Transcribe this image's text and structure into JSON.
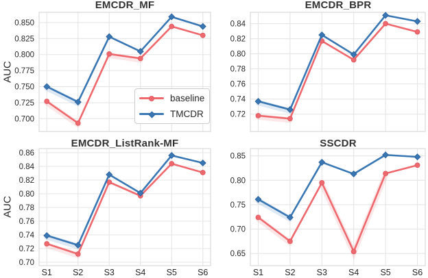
{
  "figure": {
    "background": "#ffffff"
  },
  "colors": {
    "baseline": "#EE686D",
    "baseline_edge": "#E05A62",
    "tmcdr": "#3876B4",
    "tmcdr_edge": "#2E649E",
    "grid": "#E5E5E5",
    "plot_border": "#D9D9D9",
    "tick_text": "#262626",
    "title_text": "#333333"
  },
  "legend": {
    "baseline_label": "baseline",
    "tmcdr_label": "TMCDR",
    "position": "lower right of first subplot"
  },
  "chart_data": [
    {
      "type": "line",
      "title": "EMCDR_MF",
      "ylabel": "AUC",
      "xlabel": "",
      "grid": true,
      "categories": [
        "S1",
        "S2",
        "S3",
        "S4",
        "S5",
        "S6"
      ],
      "show_x_labels": false,
      "ylim": [
        0.68,
        0.866
      ],
      "yticks": [
        0.7,
        0.725,
        0.75,
        0.775,
        0.8,
        0.825,
        0.85
      ],
      "ytick_labels": [
        "0.700",
        "0.725",
        "0.750",
        "0.775",
        "0.800",
        "0.825",
        "0.850"
      ],
      "series": [
        {
          "name": "baseline",
          "marker": "circle",
          "color_key": "baseline",
          "values": [
            0.727,
            0.693,
            0.801,
            0.794,
            0.844,
            0.83
          ],
          "band_segments": [
            [
              0,
              1
            ],
            [
              2,
              3
            ]
          ]
        },
        {
          "name": "TMCDR",
          "marker": "diamond",
          "color_key": "tmcdr",
          "values": [
            0.75,
            0.726,
            0.828,
            0.805,
            0.859,
            0.844
          ],
          "band_segments": [
            [
              0,
              1
            ]
          ]
        }
      ]
    },
    {
      "type": "line",
      "title": "EMCDR_BPR",
      "ylabel": "",
      "xlabel": "",
      "grid": true,
      "categories": [
        "S1",
        "S2",
        "S3",
        "S4",
        "S5",
        "S6"
      ],
      "show_x_labels": false,
      "ylim": [
        0.697,
        0.855
      ],
      "yticks": [
        0.72,
        0.74,
        0.76,
        0.78,
        0.8,
        0.82,
        0.84
      ],
      "ytick_labels": [
        "0.72",
        "0.74",
        "0.76",
        "0.78",
        "0.80",
        "0.82",
        "0.84"
      ],
      "series": [
        {
          "name": "baseline",
          "marker": "circle",
          "color_key": "baseline",
          "values": [
            0.718,
            0.714,
            0.817,
            0.792,
            0.84,
            0.829
          ],
          "band_segments": [
            [
              0,
              1
            ]
          ]
        },
        {
          "name": "TMCDR",
          "marker": "diamond",
          "color_key": "tmcdr",
          "values": [
            0.737,
            0.726,
            0.825,
            0.799,
            0.851,
            0.843
          ],
          "band_segments": [
            [
              0,
              1
            ]
          ]
        }
      ]
    },
    {
      "type": "line",
      "title": "EMCDR_ListRank-MF",
      "ylabel": "AUC",
      "xlabel": "",
      "grid": true,
      "categories": [
        "S1",
        "S2",
        "S3",
        "S4",
        "S5",
        "S6"
      ],
      "show_x_labels": true,
      "ylim": [
        0.695,
        0.866
      ],
      "yticks": [
        0.7,
        0.72,
        0.74,
        0.76,
        0.78,
        0.8,
        0.82,
        0.84,
        0.86
      ],
      "ytick_labels": [
        "0.70",
        "0.72",
        "0.74",
        "0.76",
        "0.78",
        "0.80",
        "0.82",
        "0.84",
        "0.86"
      ],
      "series": [
        {
          "name": "baseline",
          "marker": "circle",
          "color_key": "baseline",
          "values": [
            0.727,
            0.712,
            0.817,
            0.797,
            0.844,
            0.831
          ],
          "band_segments": [
            [
              0,
              1
            ]
          ]
        },
        {
          "name": "TMCDR",
          "marker": "diamond",
          "color_key": "tmcdr",
          "values": [
            0.739,
            0.725,
            0.828,
            0.801,
            0.856,
            0.845
          ],
          "band_segments": [
            [
              0,
              1
            ]
          ]
        }
      ]
    },
    {
      "type": "line",
      "title": "SSCDR",
      "ylabel": "",
      "xlabel": "",
      "grid": true,
      "categories": [
        "S1",
        "S2",
        "S3",
        "S4",
        "S5",
        "S6"
      ],
      "show_x_labels": true,
      "ylim": [
        0.625,
        0.865
      ],
      "yticks": [
        0.65,
        0.7,
        0.75,
        0.8,
        0.85
      ],
      "ytick_labels": [
        "0.65",
        "0.70",
        "0.75",
        "0.80",
        "0.85"
      ],
      "series": [
        {
          "name": "baseline",
          "marker": "circle",
          "color_key": "baseline",
          "values": [
            0.724,
            0.675,
            0.795,
            0.654,
            0.814,
            0.831
          ],
          "band_segments": [
            [
              0,
              1
            ],
            [
              2,
              4
            ]
          ]
        },
        {
          "name": "TMCDR",
          "marker": "diamond",
          "color_key": "tmcdr",
          "values": [
            0.761,
            0.724,
            0.837,
            0.813,
            0.852,
            0.848
          ],
          "band_segments": [
            [
              0,
              1
            ]
          ]
        }
      ]
    }
  ]
}
